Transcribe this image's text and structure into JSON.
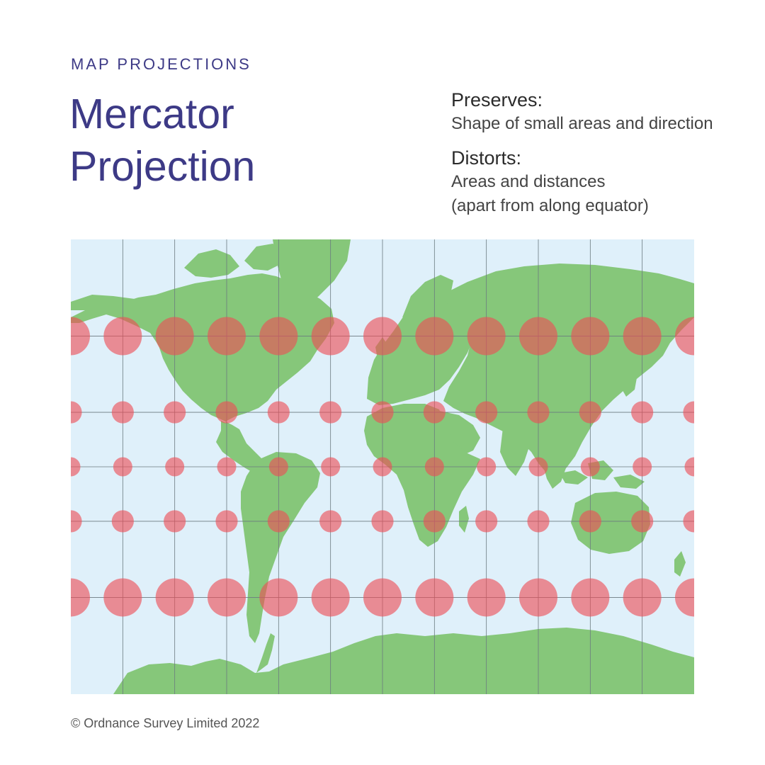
{
  "header": {
    "eyebrow": "MAP PROJECTIONS",
    "title_line1": "Mercator",
    "title_line2": "Projection"
  },
  "info": {
    "preserves_label": "Preserves:",
    "preserves_text": "Shape of small areas and direction",
    "distorts_label": "Distorts:",
    "distorts_text_line1": "Areas and distances",
    "distorts_text_line2": "(apart from along equator)"
  },
  "map": {
    "projection": "Mercator",
    "graticule_spacing_degrees": 30,
    "indicatrix_latitudes": [
      60,
      30,
      0,
      -30,
      -60
    ],
    "indicatrix_longitudes": [
      -180,
      -150,
      -120,
      -90,
      -60,
      -30,
      0,
      30,
      60,
      90,
      120,
      150,
      180
    ],
    "colors": {
      "ocean": "#dff0fa",
      "land": "#86c77a",
      "indicatrix": "#ee4d55",
      "graticule": "#6b7a80"
    }
  },
  "footer": {
    "copyright": "© Ordnance Survey Limited 2022"
  }
}
